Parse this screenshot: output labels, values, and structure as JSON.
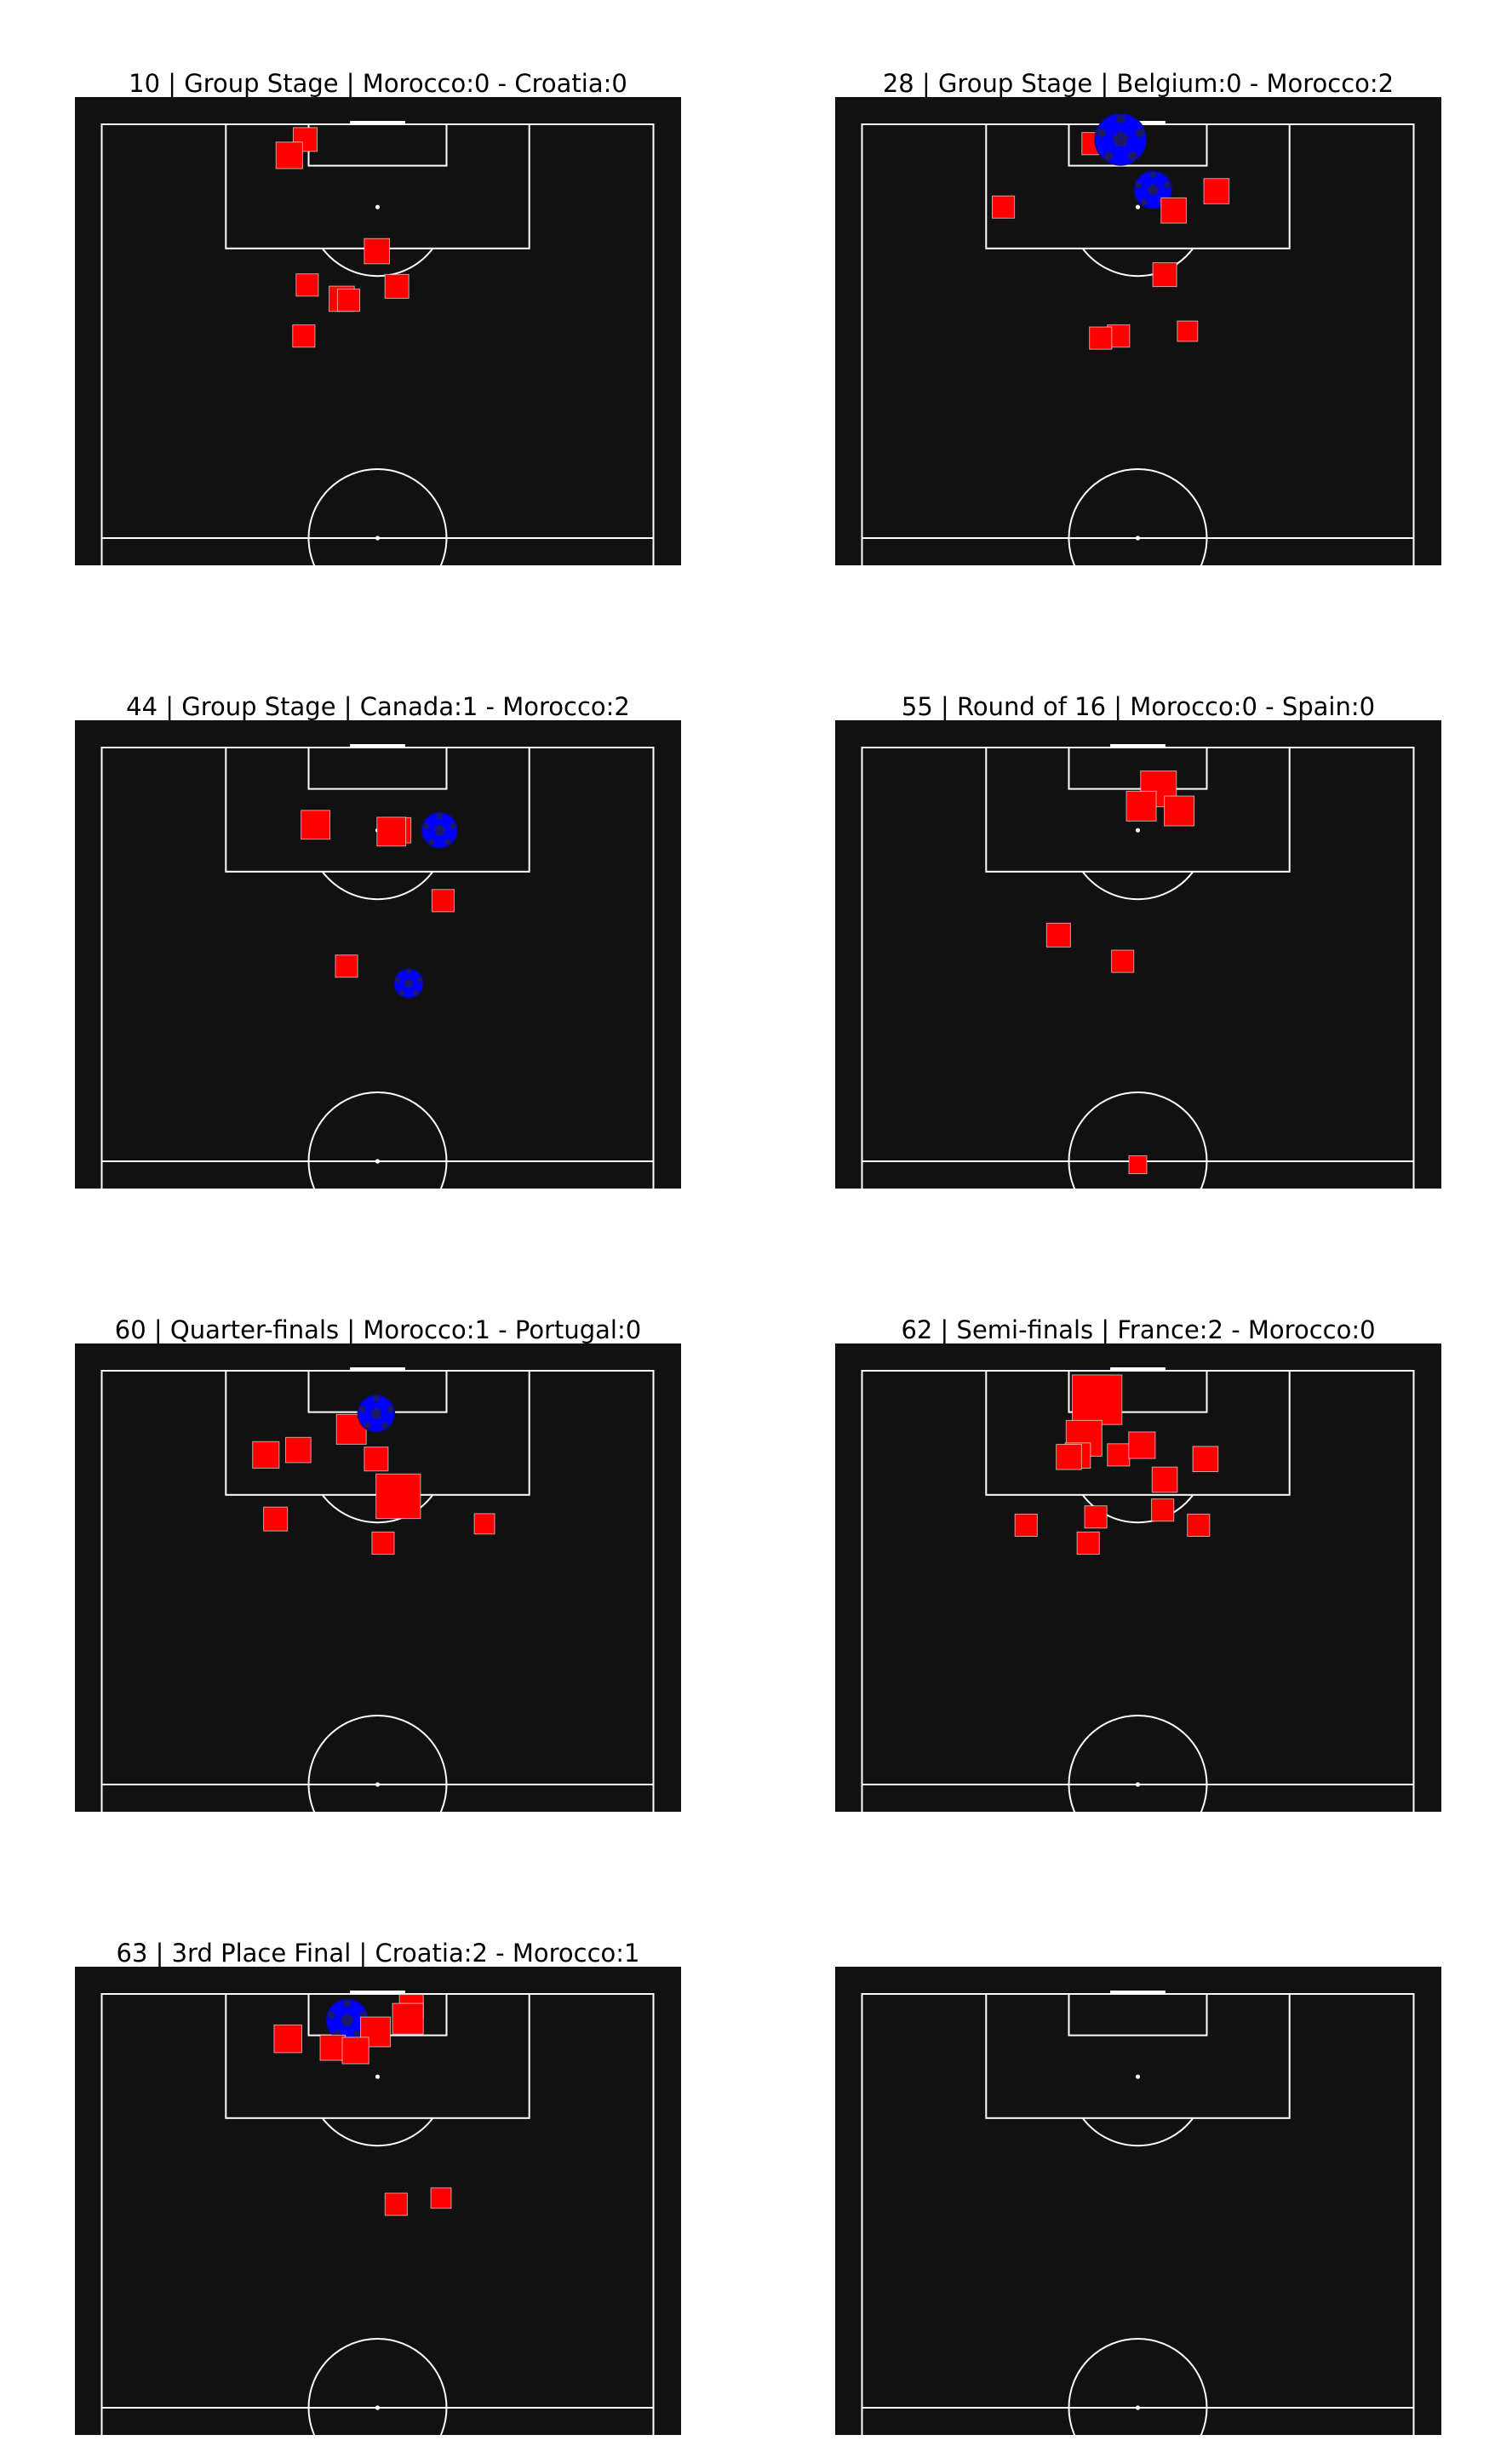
{
  "chart_data": {
    "type": "scatter",
    "subplot_grid": [
      4,
      2
    ],
    "pitch": {
      "background": "#111111",
      "line_color": "#ffffff",
      "orientation": "vertical half-pitch, goal at top",
      "x_range": [
        0,
        80
      ],
      "y_range": [
        60,
        120
      ]
    },
    "marker_legend": {
      "non_goal_shot": {
        "shape": "square",
        "color": "#ff0000"
      },
      "goal": {
        "shape": "football",
        "color": "#0000ff"
      }
    },
    "panels": [
      {
        "title": "10 | Group Stage | Morocco:0 - Croatia:0",
        "shots": [
          {
            "x": 29.5,
            "y": 117.8,
            "xg": 0.04,
            "goal": false
          },
          {
            "x": 27.2,
            "y": 115.5,
            "xg": 0.06,
            "goal": false
          },
          {
            "x": 39.9,
            "y": 101.6,
            "xg": 0.05,
            "goal": false
          },
          {
            "x": 29.8,
            "y": 96.7,
            "xg": 0.03,
            "goal": false
          },
          {
            "x": 34.8,
            "y": 94.7,
            "xg": 0.05,
            "goal": false
          },
          {
            "x": 35.8,
            "y": 94.5,
            "xg": 0.03,
            "goal": false
          },
          {
            "x": 42.8,
            "y": 96.5,
            "xg": 0.04,
            "goal": false
          },
          {
            "x": 29.3,
            "y": 89.3,
            "xg": 0.03,
            "goal": false
          }
        ]
      },
      {
        "title": "28 | Group Stage | Belgium:0 - Morocco:2",
        "shots": [
          {
            "x": 33.5,
            "y": 117.2,
            "xg": 0.03,
            "goal": false
          },
          {
            "x": 37.5,
            "y": 117.8,
            "xg": 0.3,
            "goal": true
          },
          {
            "x": 42.2,
            "y": 110.5,
            "xg": 0.1,
            "goal": true
          },
          {
            "x": 51.4,
            "y": 110.3,
            "xg": 0.05,
            "goal": false
          },
          {
            "x": 45.2,
            "y": 107.5,
            "xg": 0.05,
            "goal": false
          },
          {
            "x": 20.5,
            "y": 108.0,
            "xg": 0.03,
            "goal": false
          },
          {
            "x": 43.9,
            "y": 98.2,
            "xg": 0.04,
            "goal": false
          },
          {
            "x": 47.2,
            "y": 90.0,
            "xg": 0.02,
            "goal": false
          },
          {
            "x": 37.2,
            "y": 89.3,
            "xg": 0.03,
            "goal": false
          },
          {
            "x": 34.6,
            "y": 89.0,
            "xg": 0.03,
            "goal": false
          }
        ]
      },
      {
        "title": "44 | Group Stage | Canada:1 - Morocco:2",
        "shots": [
          {
            "x": 31.0,
            "y": 108.8,
            "xg": 0.08,
            "goal": false
          },
          {
            "x": 43.0,
            "y": 108.0,
            "xg": 0.05,
            "goal": false
          },
          {
            "x": 42.0,
            "y": 107.8,
            "xg": 0.08,
            "goal": false
          },
          {
            "x": 49.0,
            "y": 108.0,
            "xg": 0.08,
            "goal": true
          },
          {
            "x": 49.5,
            "y": 97.8,
            "xg": 0.03,
            "goal": false
          },
          {
            "x": 35.5,
            "y": 88.3,
            "xg": 0.03,
            "goal": false
          },
          {
            "x": 44.5,
            "y": 85.8,
            "xg": 0.03,
            "goal": true
          }
        ]
      },
      {
        "title": "55 | Round of 16 | Morocco:0 - Spain:0",
        "shots": [
          {
            "x": 43.0,
            "y": 114.0,
            "xg": 0.16,
            "goal": false
          },
          {
            "x": 40.5,
            "y": 111.5,
            "xg": 0.09,
            "goal": false
          },
          {
            "x": 46.0,
            "y": 110.8,
            "xg": 0.09,
            "goal": false
          },
          {
            "x": 28.5,
            "y": 92.8,
            "xg": 0.04,
            "goal": false
          },
          {
            "x": 37.8,
            "y": 89.0,
            "xg": 0.03,
            "goal": false
          },
          {
            "x": 40.0,
            "y": 59.5,
            "xg": 0.01,
            "goal": false
          }
        ]
      },
      {
        "title": "60 | Quarter-finals | Morocco:1 - Portugal:0",
        "shots": [
          {
            "x": 36.2,
            "y": 111.5,
            "xg": 0.09,
            "goal": false
          },
          {
            "x": 39.8,
            "y": 113.8,
            "xg": 0.09,
            "goal": true
          },
          {
            "x": 23.8,
            "y": 107.8,
            "xg": 0.06,
            "goal": false
          },
          {
            "x": 28.5,
            "y": 108.5,
            "xg": 0.05,
            "goal": false
          },
          {
            "x": 39.8,
            "y": 107.2,
            "xg": 0.04,
            "goal": false
          },
          {
            "x": 43.0,
            "y": 101.8,
            "xg": 0.3,
            "goal": false
          },
          {
            "x": 25.2,
            "y": 98.5,
            "xg": 0.04,
            "goal": false
          },
          {
            "x": 40.8,
            "y": 95.0,
            "xg": 0.03,
            "goal": false
          },
          {
            "x": 55.5,
            "y": 97.8,
            "xg": 0.02,
            "goal": false
          }
        ]
      },
      {
        "title": "62 | Semi-finals | France:2 - Morocco:0",
        "shots": [
          {
            "x": 34.1,
            "y": 115.8,
            "xg": 0.4,
            "goal": false
          },
          {
            "x": 32.2,
            "y": 110.2,
            "xg": 0.16,
            "goal": false
          },
          {
            "x": 31.3,
            "y": 107.7,
            "xg": 0.05,
            "goal": false
          },
          {
            "x": 30.0,
            "y": 107.5,
            "xg": 0.05,
            "goal": false
          },
          {
            "x": 37.2,
            "y": 107.8,
            "xg": 0.03,
            "goal": false
          },
          {
            "x": 40.6,
            "y": 109.2,
            "xg": 0.06,
            "goal": false
          },
          {
            "x": 49.8,
            "y": 107.2,
            "xg": 0.05,
            "goal": false
          },
          {
            "x": 43.9,
            "y": 104.2,
            "xg": 0.05,
            "goal": false
          },
          {
            "x": 43.6,
            "y": 99.8,
            "xg": 0.03,
            "goal": false
          },
          {
            "x": 33.9,
            "y": 98.8,
            "xg": 0.03,
            "goal": false
          },
          {
            "x": 48.8,
            "y": 97.6,
            "xg": 0.03,
            "goal": false
          },
          {
            "x": 23.8,
            "y": 97.6,
            "xg": 0.03,
            "goal": false
          },
          {
            "x": 32.8,
            "y": 95.0,
            "xg": 0.03,
            "goal": false
          }
        ]
      },
      {
        "title": "63 | 3rd Place Final | Croatia:2 - Morocco:1",
        "shots": [
          {
            "x": 44.9,
            "y": 118.2,
            "xg": 0.04,
            "goal": false
          },
          {
            "x": 44.4,
            "y": 116.4,
            "xg": 0.1,
            "goal": false
          },
          {
            "x": 35.6,
            "y": 116.2,
            "xg": 0.15,
            "goal": true
          },
          {
            "x": 39.7,
            "y": 114.5,
            "xg": 0.09,
            "goal": false
          },
          {
            "x": 27.0,
            "y": 113.5,
            "xg": 0.07,
            "goal": false
          },
          {
            "x": 33.5,
            "y": 112.2,
            "xg": 0.05,
            "goal": false
          },
          {
            "x": 36.8,
            "y": 111.8,
            "xg": 0.06,
            "goal": false
          },
          {
            "x": 49.2,
            "y": 90.4,
            "xg": 0.02,
            "goal": false
          },
          {
            "x": 42.7,
            "y": 89.5,
            "xg": 0.03,
            "goal": false
          }
        ]
      },
      {
        "title": "",
        "shots": []
      }
    ]
  }
}
